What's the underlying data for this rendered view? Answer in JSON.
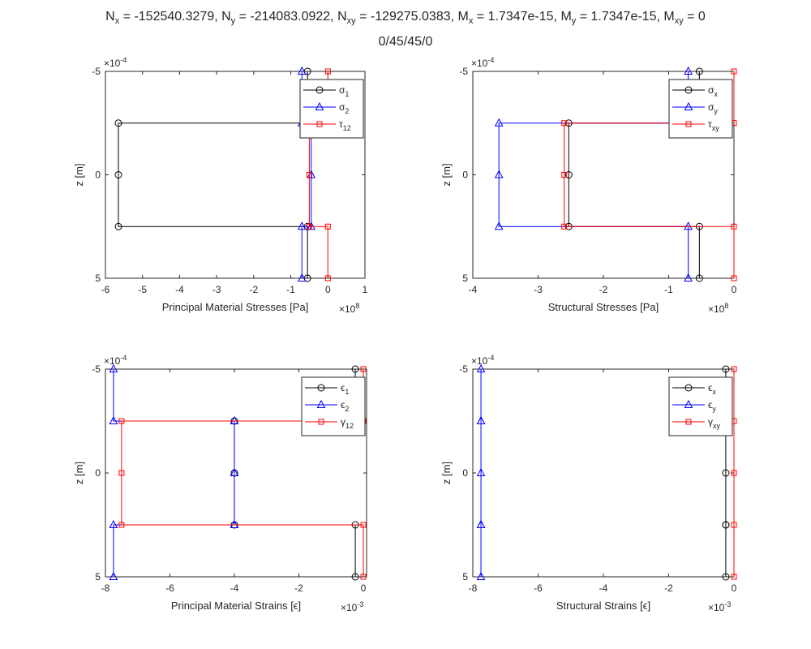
{
  "header": {
    "title_parts": [
      {
        "base": "N",
        "sub": "x",
        "val": " = -152540.3279, "
      },
      {
        "base": "N",
        "sub": "y",
        "val": " = -214083.0922, "
      },
      {
        "base": "N",
        "sub": "xy",
        "val": " = -129275.0383, "
      },
      {
        "base": "M",
        "sub": "x",
        "val": " = 1.7347e-15, "
      },
      {
        "base": "M",
        "sub": "y",
        "val": " = 1.7347e-15, "
      },
      {
        "base": "M",
        "sub": "xy",
        "val": " = 0"
      }
    ],
    "subtitle": "0/45/45/0"
  },
  "colors": {
    "black": "#000000",
    "blue": "#0000ff",
    "red": "#ff0000",
    "axis": "#262626"
  },
  "chart_data": [
    {
      "type": "line",
      "xlabel": "Principal Material Stresses [Pa]",
      "ylabel": "z [m]",
      "x_exponent": "×10^8",
      "y_exponent": "×10^-4",
      "xlim": [
        -6,
        1
      ],
      "ylim": [
        -5,
        5
      ],
      "y_reversed": true,
      "xticks": [
        -6,
        -5,
        -4,
        -3,
        -2,
        -1,
        0,
        1
      ],
      "yticks": [
        -5,
        0,
        5
      ],
      "legend_position": "top-right",
      "series": [
        {
          "name": "σ",
          "name_sub": "1",
          "color": "#000000",
          "marker": "circle",
          "x": [
            -0.55,
            -0.55,
            -5.65,
            -5.65,
            -5.65,
            -0.55,
            -0.55
          ],
          "y": [
            -5,
            -2.5,
            -2.5,
            0,
            2.5,
            2.5,
            5
          ]
        },
        {
          "name": "σ",
          "name_sub": "2",
          "color": "#0000ff",
          "marker": "triangle",
          "x": [
            -0.7,
            -0.7,
            -0.45,
            -0.45,
            -0.45,
            -0.7,
            -0.7
          ],
          "y": [
            -5,
            -2.5,
            -2.5,
            0,
            2.5,
            2.5,
            5
          ]
        },
        {
          "name": "τ",
          "name_sub": "12",
          "color": "#ff0000",
          "marker": "square",
          "x": [
            0,
            0,
            -0.5,
            -0.5,
            -0.5,
            0,
            0
          ],
          "y": [
            -5,
            -2.5,
            -2.5,
            0,
            2.5,
            2.5,
            5
          ]
        }
      ]
    },
    {
      "type": "line",
      "xlabel": "Structural Stresses [Pa]",
      "ylabel": "z [m]",
      "x_exponent": "×10^8",
      "y_exponent": "×10^-4",
      "xlim": [
        -4,
        0
      ],
      "ylim": [
        -5,
        5
      ],
      "y_reversed": true,
      "xticks": [
        -4,
        -3,
        -2,
        -1,
        0
      ],
      "yticks": [
        -5,
        0,
        5
      ],
      "legend_position": "top-right",
      "series": [
        {
          "name": "σ",
          "name_sub": "x",
          "color": "#000000",
          "marker": "circle",
          "x": [
            -0.53,
            -0.53,
            -2.53,
            -2.53,
            -2.53,
            -0.53,
            -0.53
          ],
          "y": [
            -5,
            -2.5,
            -2.5,
            0,
            2.5,
            2.5,
            5
          ]
        },
        {
          "name": "σ",
          "name_sub": "y",
          "color": "#0000ff",
          "marker": "triangle",
          "x": [
            -0.7,
            -0.7,
            -3.6,
            -3.6,
            -3.6,
            -0.7,
            -0.7
          ],
          "y": [
            -5,
            -2.5,
            -2.5,
            0,
            2.5,
            2.5,
            5
          ]
        },
        {
          "name": "τ",
          "name_sub": "xy",
          "color": "#ff0000",
          "marker": "square",
          "x": [
            0,
            0,
            -2.6,
            -2.6,
            -2.6,
            0,
            0
          ],
          "y": [
            -5,
            -2.5,
            -2.5,
            0,
            2.5,
            2.5,
            5
          ]
        }
      ]
    },
    {
      "type": "line",
      "xlabel": "Principal Material Strains [ϵ]",
      "ylabel": "z [m]",
      "x_exponent": "×10^-3",
      "y_exponent": "×10^-4",
      "xlim": [
        -8,
        0.1
      ],
      "ylim": [
        -5,
        5
      ],
      "y_reversed": true,
      "xticks": [
        -8,
        -6,
        -4,
        -2,
        0
      ],
      "yticks": [
        -5,
        0,
        5
      ],
      "legend_position": "top-right",
      "series": [
        {
          "name": "ϵ",
          "name_sub": "1",
          "color": "#000000",
          "marker": "circle",
          "x": [
            -0.25,
            -0.25,
            -4.0,
            -4.0,
            -4.0,
            -0.25,
            -0.25
          ],
          "y": [
            -5,
            -2.5,
            -2.5,
            0,
            2.5,
            2.5,
            5
          ]
        },
        {
          "name": "ϵ",
          "name_sub": "2",
          "color": "#0000ff",
          "marker": "triangle",
          "x": [
            -7.75,
            -7.75,
            -4.0,
            -4.0,
            -4.0,
            -7.75,
            -7.75
          ],
          "y": [
            -5,
            -2.5,
            -2.5,
            0,
            2.5,
            2.5,
            5
          ]
        },
        {
          "name": "γ",
          "name_sub": "12",
          "color": "#ff0000",
          "marker": "square",
          "x": [
            0,
            0,
            -7.5,
            -7.5,
            -7.5,
            0,
            0
          ],
          "y": [
            -5,
            -2.5,
            -2.5,
            0,
            2.5,
            2.5,
            5
          ]
        }
      ]
    },
    {
      "type": "line",
      "xlabel": "Structural Strains [ϵ]",
      "ylabel": "z [m]",
      "x_exponent": "×10^-3",
      "y_exponent": "×10^-4",
      "xlim": [
        -8,
        0
      ],
      "ylim": [
        -5,
        5
      ],
      "y_reversed": true,
      "xticks": [
        -8,
        -6,
        -4,
        -2,
        0
      ],
      "yticks": [
        -5,
        0,
        5
      ],
      "legend_position": "top-right",
      "series": [
        {
          "name": "ϵ",
          "name_sub": "x",
          "color": "#000000",
          "marker": "circle",
          "x": [
            -0.25,
            -0.25,
            -0.25,
            -0.25,
            -0.25,
            -0.25,
            -0.25
          ],
          "y": [
            -5,
            -2.5,
            -2.5,
            0,
            2.5,
            2.5,
            5
          ]
        },
        {
          "name": "ϵ",
          "name_sub": "y",
          "color": "#0000ff",
          "marker": "triangle",
          "x": [
            -7.75,
            -7.75,
            -7.75,
            -7.75,
            -7.75,
            -7.75,
            -7.75
          ],
          "y": [
            -5,
            -2.5,
            -2.5,
            0,
            2.5,
            2.5,
            5
          ]
        },
        {
          "name": "γ",
          "name_sub": "xy",
          "color": "#ff0000",
          "marker": "square",
          "x": [
            0,
            0,
            0,
            0,
            0,
            0,
            0
          ],
          "y": [
            -5,
            -2.5,
            -2.5,
            0,
            2.5,
            2.5,
            5
          ]
        }
      ]
    }
  ]
}
